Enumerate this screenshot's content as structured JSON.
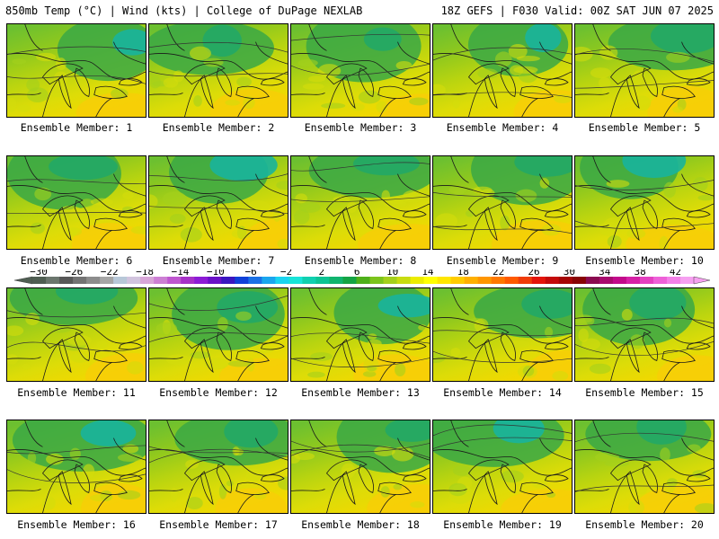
{
  "header": {
    "left_title": "850mb Temp (°C) | Wind (kts) | College of DuPage NEXLAB",
    "right_title": "18Z GEFS | F030 Valid: 00Z SAT JUN 07 2025"
  },
  "panels": [
    {
      "label": "Ensemble Member: 1"
    },
    {
      "label": "Ensemble Member: 2"
    },
    {
      "label": "Ensemble Member: 3"
    },
    {
      "label": "Ensemble Member: 4"
    },
    {
      "label": "Ensemble Member: 5"
    },
    {
      "label": "Ensemble Member: 6"
    },
    {
      "label": "Ensemble Member: 7"
    },
    {
      "label": "Ensemble Member: 8"
    },
    {
      "label": "Ensemble Member: 9"
    },
    {
      "label": "Ensemble Member: 10"
    },
    {
      "label": "Ensemble Member: 11"
    },
    {
      "label": "Ensemble Member: 12"
    },
    {
      "label": "Ensemble Member: 13"
    },
    {
      "label": "Ensemble Member: 14"
    },
    {
      "label": "Ensemble Member: 15"
    },
    {
      "label": "Ensemble Member: 16"
    },
    {
      "label": "Ensemble Member: 17"
    },
    {
      "label": "Ensemble Member: 18"
    },
    {
      "label": "Ensemble Member: 19"
    },
    {
      "label": "Ensemble Member: 20"
    }
  ],
  "colorbar": {
    "tick_labels": [
      "−30",
      "−26",
      "−22",
      "−18",
      "−14",
      "−10",
      "−6",
      "−2",
      "2",
      "6",
      "10",
      "14",
      "18",
      "22",
      "26",
      "30",
      "34",
      "38",
      "42"
    ],
    "colors": [
      "#4f5e52",
      "#6b766d",
      "#585858",
      "#737373",
      "#8c8c8c",
      "#a6a6a6",
      "#b8c8d8",
      "#d2c4de",
      "#d8a6d8",
      "#cc7fd4",
      "#bf56d0",
      "#a630c8",
      "#8c1bd6",
      "#6a10c8",
      "#3a16c0",
      "#1040d8",
      "#1a70e6",
      "#1aa6ee",
      "#1ad4f0",
      "#18e4d8",
      "#10d0b0",
      "#0cc494",
      "#10b46e",
      "#14a444",
      "#4eb01a",
      "#7cc41c",
      "#a4d01c",
      "#c8dc10",
      "#ecec00",
      "#ffff00",
      "#ffe600",
      "#ffcc00",
      "#ffb000",
      "#ff9600",
      "#ff7800",
      "#ff5a00",
      "#f03c0a",
      "#e4140a",
      "#c40a0a",
      "#a60606",
      "#880404",
      "#8a0a50",
      "#a80a6e",
      "#c20a8a",
      "#d620a6",
      "#e440c0",
      "#ee60d8",
      "#f480e8",
      "#f6a0f0"
    ]
  }
}
